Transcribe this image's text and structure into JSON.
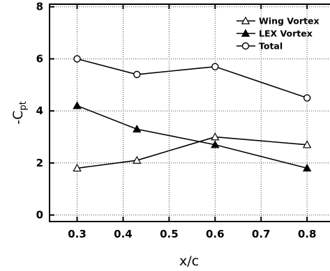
{
  "chart_data": {
    "type": "line",
    "xlabel": "x/c",
    "ylabel_main": "-C",
    "ylabel_sub": "pt",
    "xlim": [
      0.24,
      0.862
    ],
    "ylim": [
      -0.25,
      8.1
    ],
    "x_ticks": [
      0.3,
      0.4,
      0.5,
      0.6,
      0.7,
      0.8
    ],
    "x_tick_labels": [
      "0.3",
      "0.4",
      "0.5",
      "0.6",
      "0.7",
      "0.8"
    ],
    "y_ticks": [
      0,
      2,
      4,
      6,
      8
    ],
    "y_tick_labels": [
      "0",
      "2",
      "4",
      "6",
      "8"
    ],
    "grid": "dotted",
    "legend_position": "top-right",
    "series": [
      {
        "name": "Wing Vortex",
        "marker": "triangle-open",
        "x": [
          0.3,
          0.43,
          0.6,
          0.8
        ],
        "y": [
          1.8,
          2.1,
          3.0,
          2.7
        ]
      },
      {
        "name": "LEX Vortex",
        "marker": "triangle-filled",
        "x": [
          0.3,
          0.43,
          0.6,
          0.8
        ],
        "y": [
          4.2,
          3.3,
          2.7,
          1.8
        ]
      },
      {
        "name": "Total",
        "marker": "circle-open",
        "x": [
          0.3,
          0.43,
          0.6,
          0.8
        ],
        "y": [
          6.0,
          5.4,
          5.7,
          4.5
        ]
      }
    ]
  }
}
